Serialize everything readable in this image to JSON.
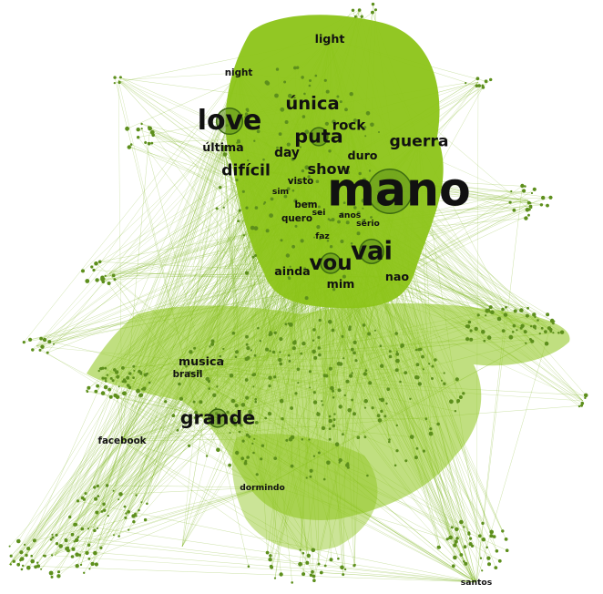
{
  "graph": {
    "edge_color": "#7ab317",
    "fill_color": "#8cc418",
    "node_color": "#5d8f1c",
    "label_color": "#111111",
    "labels": [
      {
        "id": "mano",
        "text": "mano"
      },
      {
        "id": "love",
        "text": "love"
      },
      {
        "id": "vai",
        "text": "vai"
      },
      {
        "id": "grande",
        "text": "grande"
      },
      {
        "id": "vou",
        "text": "vou"
      },
      {
        "id": "puta",
        "text": "puta"
      },
      {
        "id": "unica",
        "text": "única"
      },
      {
        "id": "guerra",
        "text": "guerra"
      },
      {
        "id": "dificil",
        "text": "difícil"
      },
      {
        "id": "show",
        "text": "show"
      },
      {
        "id": "ultima",
        "text": "última"
      },
      {
        "id": "rock",
        "text": "rock"
      },
      {
        "id": "day",
        "text": "day"
      },
      {
        "id": "duro",
        "text": "duro"
      },
      {
        "id": "light",
        "text": "light"
      },
      {
        "id": "night",
        "text": "night"
      },
      {
        "id": "ainda",
        "text": "ainda"
      },
      {
        "id": "mim",
        "text": "mim"
      },
      {
        "id": "nao",
        "text": "nao"
      },
      {
        "id": "musica",
        "text": "musica"
      },
      {
        "id": "brasil",
        "text": "brasil"
      },
      {
        "id": "facebook",
        "text": "facebook"
      },
      {
        "id": "santos",
        "text": "santos"
      },
      {
        "id": "dormindo",
        "text": "dormindo"
      },
      {
        "id": "visto",
        "text": "visto"
      },
      {
        "id": "quero",
        "text": "quero"
      },
      {
        "id": "bem",
        "text": "bem"
      },
      {
        "id": "sei",
        "text": "sei"
      },
      {
        "id": "serio",
        "text": "sério"
      },
      {
        "id": "anos",
        "text": "anos"
      },
      {
        "id": "sim",
        "text": "sim"
      },
      {
        "id": "faz",
        "text": "faz"
      }
    ]
  }
}
